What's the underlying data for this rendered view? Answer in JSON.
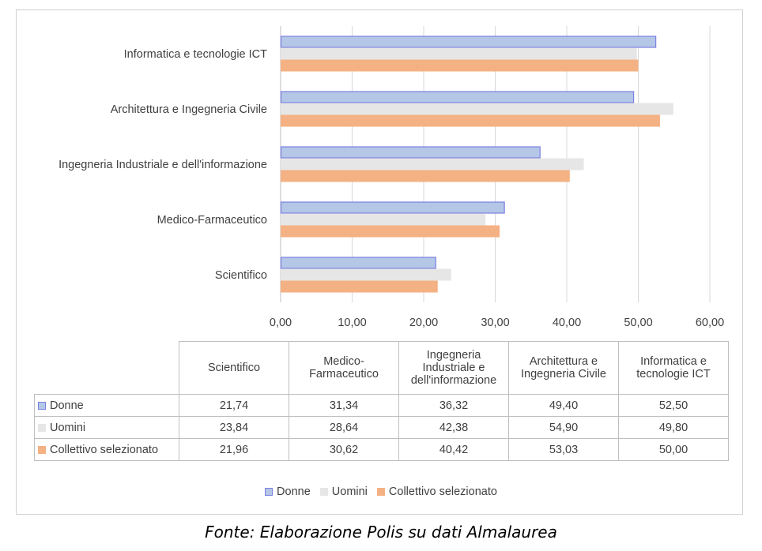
{
  "chart_data": {
    "type": "bar",
    "orientation": "horizontal",
    "categories": [
      "Scientifico",
      "Medico-Farmaceutico",
      "Ingegneria Industriale e dell'informazione",
      "Architettura e Ingegneria Civile",
      "Informatica e tecnologie ICT"
    ],
    "table_headers": [
      "Scientifico",
      "Medico- Farmaceutico",
      "Ingegneria Industriale e dell'informazione",
      "Architettura e Ingegneria Civile",
      "Informatica e tecnologie ICT"
    ],
    "series": [
      {
        "name": "Donne",
        "values": [
          21.74,
          31.34,
          36.32,
          49.4,
          52.5
        ],
        "labels": [
          "21,74",
          "31,34",
          "36,32",
          "49,40",
          "52,50"
        ],
        "color": "#b4c7e7",
        "stroke": "#7b7fe0"
      },
      {
        "name": "Uomini",
        "values": [
          23.84,
          28.64,
          42.38,
          54.9,
          49.8
        ],
        "labels": [
          "23,84",
          "28,64",
          "42,38",
          "54,90",
          "49,80"
        ],
        "color": "#e7e6e6",
        "stroke": "#e7e6e6"
      },
      {
        "name": "Collettivo selezionato",
        "values": [
          21.96,
          30.62,
          40.42,
          53.03,
          50.0
        ],
        "labels": [
          "21,96",
          "30,62",
          "40,42",
          "53,03",
          "50,00"
        ],
        "color": "#f4b183",
        "stroke": "#f4b183"
      }
    ],
    "xlim": [
      0,
      60
    ],
    "xticks": [
      0,
      10,
      20,
      30,
      40,
      50,
      60
    ],
    "xtick_labels": [
      "0,00",
      "10,00",
      "20,00",
      "30,00",
      "40,00",
      "50,00",
      "60,00"
    ],
    "grid": true,
    "legend": "bottom",
    "data_table": true
  },
  "caption": "Fonte: Elaborazione Polis su dati Almalaurea"
}
